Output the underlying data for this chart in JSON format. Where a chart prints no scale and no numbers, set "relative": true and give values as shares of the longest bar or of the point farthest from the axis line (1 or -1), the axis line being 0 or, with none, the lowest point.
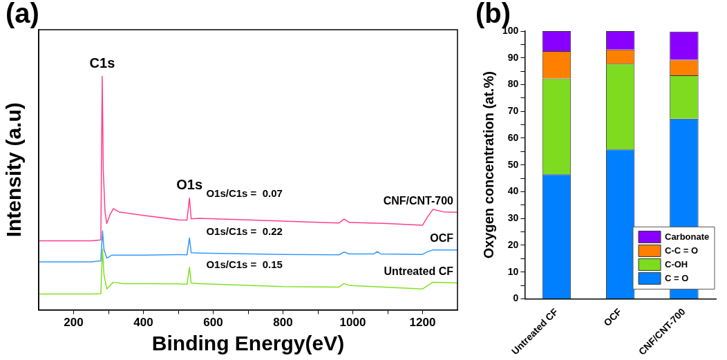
{
  "chart_data": [
    {
      "type": "line",
      "title": "(a)",
      "xlabel": "Binding Energy(eV)",
      "ylabel": "Intensity (a.u)",
      "relative": true,
      "xlim": [
        100,
        1300
      ],
      "xticks": [
        200,
        {
          "value": 300,
          "label": null
        },
        400,
        {
          "value": 500,
          "label": null
        },
        600,
        {
          "value": 700,
          "label": null
        },
        800,
        {
          "value": 900,
          "label": null
        },
        1000,
        {
          "value": 1100,
          "label": null
        },
        1200
      ],
      "grid": false,
      "legend": false,
      "marker": "none",
      "line_style": "solid",
      "annotations": [
        {
          "text": "C1s",
          "x": 282,
          "y": 1.0
        },
        {
          "text": "O1s",
          "x": 532,
          "y": 0.479
        },
        "O1s/C1s =  0.07",
        "O1s/C1s =  0.22",
        "O1s/C1s =  0.15"
      ],
      "series": [
        {
          "name": "CNF/CNT-700",
          "color": "#ff3f8a",
          "x": [
            100,
            150,
            200,
            250,
            278,
            282,
            285,
            290,
            295,
            305,
            314,
            330,
            400,
            500,
            525,
            532,
            537,
            560,
            700,
            900,
            960,
            975,
            990,
            1100,
            1200,
            1215,
            1230,
            1260,
            1300
          ],
          "values": [
            0.296,
            0.296,
            0.296,
            0.296,
            0.3,
            1.0,
            0.6,
            0.42,
            0.37,
            0.41,
            0.434,
            0.42,
            0.405,
            0.386,
            0.385,
            0.479,
            0.39,
            0.392,
            0.386,
            0.375,
            0.372,
            0.389,
            0.375,
            0.37,
            0.363,
            0.4,
            0.431,
            0.42,
            0.418
          ]
        },
        {
          "name": "OCF",
          "color": "#3399ff",
          "x": [
            100,
            150,
            200,
            250,
            278,
            283,
            287,
            295,
            310,
            400,
            500,
            525,
            532,
            537,
            560,
            800,
            960,
            975,
            990,
            1060,
            1070,
            1080,
            1200,
            1215,
            1230,
            1300
          ],
          "values": [
            0.206,
            0.206,
            0.206,
            0.206,
            0.21,
            0.338,
            0.26,
            0.222,
            0.235,
            0.235,
            0.237,
            0.236,
            0.309,
            0.245,
            0.244,
            0.238,
            0.236,
            0.248,
            0.24,
            0.24,
            0.25,
            0.24,
            0.238,
            0.25,
            0.257,
            0.257
          ]
        },
        {
          "name": "Untreated CF",
          "color": "#80e020",
          "x": [
            100,
            150,
            200,
            250,
            278,
            283,
            287,
            295,
            314,
            340,
            400,
            500,
            525,
            532,
            537,
            560,
            800,
            960,
            975,
            990,
            1100,
            1200,
            1215,
            1230,
            1300
          ],
          "values": [
            0.068,
            0.068,
            0.068,
            0.068,
            0.07,
            0.26,
            0.15,
            0.09,
            0.119,
            0.113,
            0.113,
            0.112,
            0.11,
            0.183,
            0.115,
            0.113,
            0.1,
            0.098,
            0.113,
            0.105,
            0.097,
            0.09,
            0.105,
            0.119,
            0.116
          ]
        }
      ]
    },
    {
      "type": "bar",
      "stacked": true,
      "title": "(b)",
      "ylabel": "Oxygen concentration (at.%)",
      "categories": [
        "Untreated CF",
        "OCF",
        "CNF/CNT-700"
      ],
      "ylim": [
        0,
        100
      ],
      "yticks": [
        0,
        {
          "value": 5,
          "label": null
        },
        10,
        {
          "value": 15,
          "label": null
        },
        20,
        {
          "value": 25,
          "label": null
        },
        30,
        {
          "value": 35,
          "label": null
        },
        40,
        {
          "value": 45,
          "label": null
        },
        50,
        {
          "value": 55,
          "label": null
        },
        60,
        {
          "value": 65,
          "label": null
        },
        70,
        {
          "value": 75,
          "label": null
        },
        80,
        {
          "value": 85,
          "label": null
        },
        90,
        {
          "value": 95,
          "label": null
        },
        100
      ],
      "grid": false,
      "legend": "bottom right",
      "series": [
        {
          "name": "C = O",
          "color": "#0080ff",
          "values": [
            46.5,
            55.8,
            67.3
          ]
        },
        {
          "name": "C-OH",
          "color": "#7ddc1f",
          "values": [
            35.8,
            32.0,
            16.2
          ]
        },
        {
          "name": "C-C = O",
          "color": "#ff8000",
          "values": [
            10.2,
            5.3,
            5.8
          ]
        },
        {
          "name": "Carbonate",
          "color": "#8a00ff",
          "values": [
            7.5,
            6.9,
            10.5
          ]
        }
      ]
    }
  ]
}
